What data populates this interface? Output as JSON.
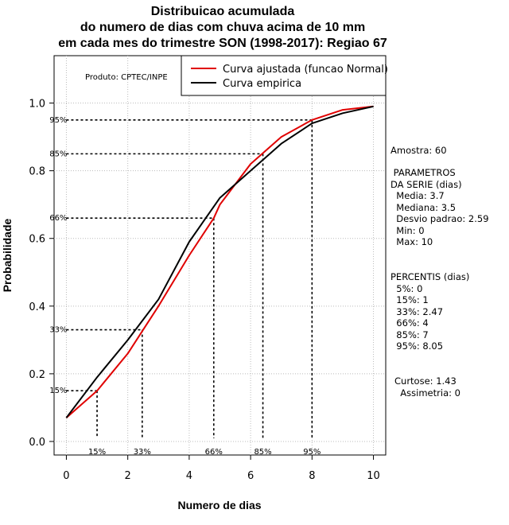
{
  "chart_data": {
    "type": "line",
    "title_lines": [
      "Distribuicao acumulada",
      "do numero de dias com chuva acima de 10 mm",
      "em cada mes do trimestre SON (1998-2017): Regiao 67"
    ],
    "xlabel": "Numero de dias",
    "ylabel": "Probabilidade",
    "xlim": [
      -0.4,
      10.4
    ],
    "ylim": [
      -0.04,
      1.14
    ],
    "x_ticks": [
      "0",
      "2",
      "4",
      "6",
      "8",
      "10"
    ],
    "y_ticks": [
      "0.0",
      "0.2",
      "0.4",
      "0.6",
      "0.8",
      "1.0"
    ],
    "x_tick_values": [
      0,
      2,
      4,
      6,
      8,
      10
    ],
    "y_tick_values": [
      0,
      0.2,
      0.4,
      0.6,
      0.8,
      1.0
    ],
    "grid": true,
    "product_label": "Produto: CPTEC/INPE",
    "legend": {
      "position": "top-right",
      "entries": [
        {
          "label": "Curva ajustada (funcao Normal)",
          "color": "#e00000"
        },
        {
          "label": "Curva empirica",
          "color": "#000000"
        }
      ]
    },
    "series": [
      {
        "name": "Curva ajustada (funcao Normal)",
        "color": "#e00000",
        "x": [
          0,
          1,
          2,
          2.5,
          3,
          4,
          4.8,
          5,
          6,
          6.5,
          7,
          8,
          9,
          10
        ],
        "y": [
          0.07,
          0.15,
          0.26,
          0.33,
          0.4,
          0.55,
          0.66,
          0.7,
          0.82,
          0.86,
          0.9,
          0.95,
          0.98,
          0.99
        ]
      },
      {
        "name": "Curva empirica",
        "color": "#000000",
        "x": [
          0,
          1,
          2,
          3,
          4,
          5,
          6,
          7,
          8,
          9,
          10
        ],
        "y": [
          0.07,
          0.19,
          0.3,
          0.42,
          0.59,
          0.72,
          0.8,
          0.88,
          0.94,
          0.97,
          0.99
        ]
      }
    ],
    "percentile_markers": [
      {
        "label": "15%",
        "x": 1,
        "y": 0.15
      },
      {
        "label": "33%",
        "x": 2.47,
        "y": 0.33
      },
      {
        "label": "66%",
        "x": 4.8,
        "y": 0.66
      },
      {
        "label": "85%",
        "x": 6.4,
        "y": 0.85
      },
      {
        "label": "95%",
        "x": 8.0,
        "y": 0.95
      }
    ]
  },
  "stats": {
    "amostra": "Amostra: 60",
    "params_block": " PARAMETROS\nDA SERIE (dias)\n  Media: 3.7\n  Mediana: 3.5\n  Desvio padrao: 2.59\n  Min: 0\n  Max: 10",
    "percentis_block": "PERCENTIS (dias)\n  5%: 0\n  15%: 1\n  33%: 2.47\n  66%: 4\n  85%: 7\n  95%: 8.05",
    "shape_block": "Curtose: 1.43\n  Assimetria: 0"
  }
}
